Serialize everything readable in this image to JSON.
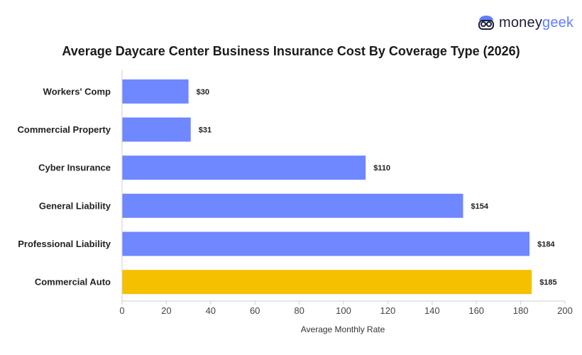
{
  "brand": {
    "name_part1": "money",
    "name_part2": "geek",
    "icon": "moneygeek-face-icon"
  },
  "chart_data": {
    "type": "bar",
    "orientation": "horizontal",
    "title": "Average Daycare Center Business Insurance Cost By Coverage Type (2026)",
    "xlabel": "Average Monthly Rate",
    "ylabel": "",
    "categories": [
      "Workers' Comp",
      "Commercial Property",
      "Cyber Insurance",
      "General Liability",
      "Professional Liability",
      "Commercial Auto"
    ],
    "values": [
      30,
      31,
      110,
      154,
      184,
      185
    ],
    "value_labels": [
      "$30",
      "$31",
      "$110",
      "$154",
      "$184",
      "$185"
    ],
    "bar_colors": [
      "#6f87ff",
      "#6f87ff",
      "#6f87ff",
      "#6f87ff",
      "#6f87ff",
      "#f5c000"
    ],
    "xlim": [
      0,
      200
    ],
    "xticks": [
      0,
      20,
      40,
      60,
      80,
      100,
      120,
      140,
      160,
      180,
      200
    ],
    "grid": false,
    "legend": "none"
  }
}
